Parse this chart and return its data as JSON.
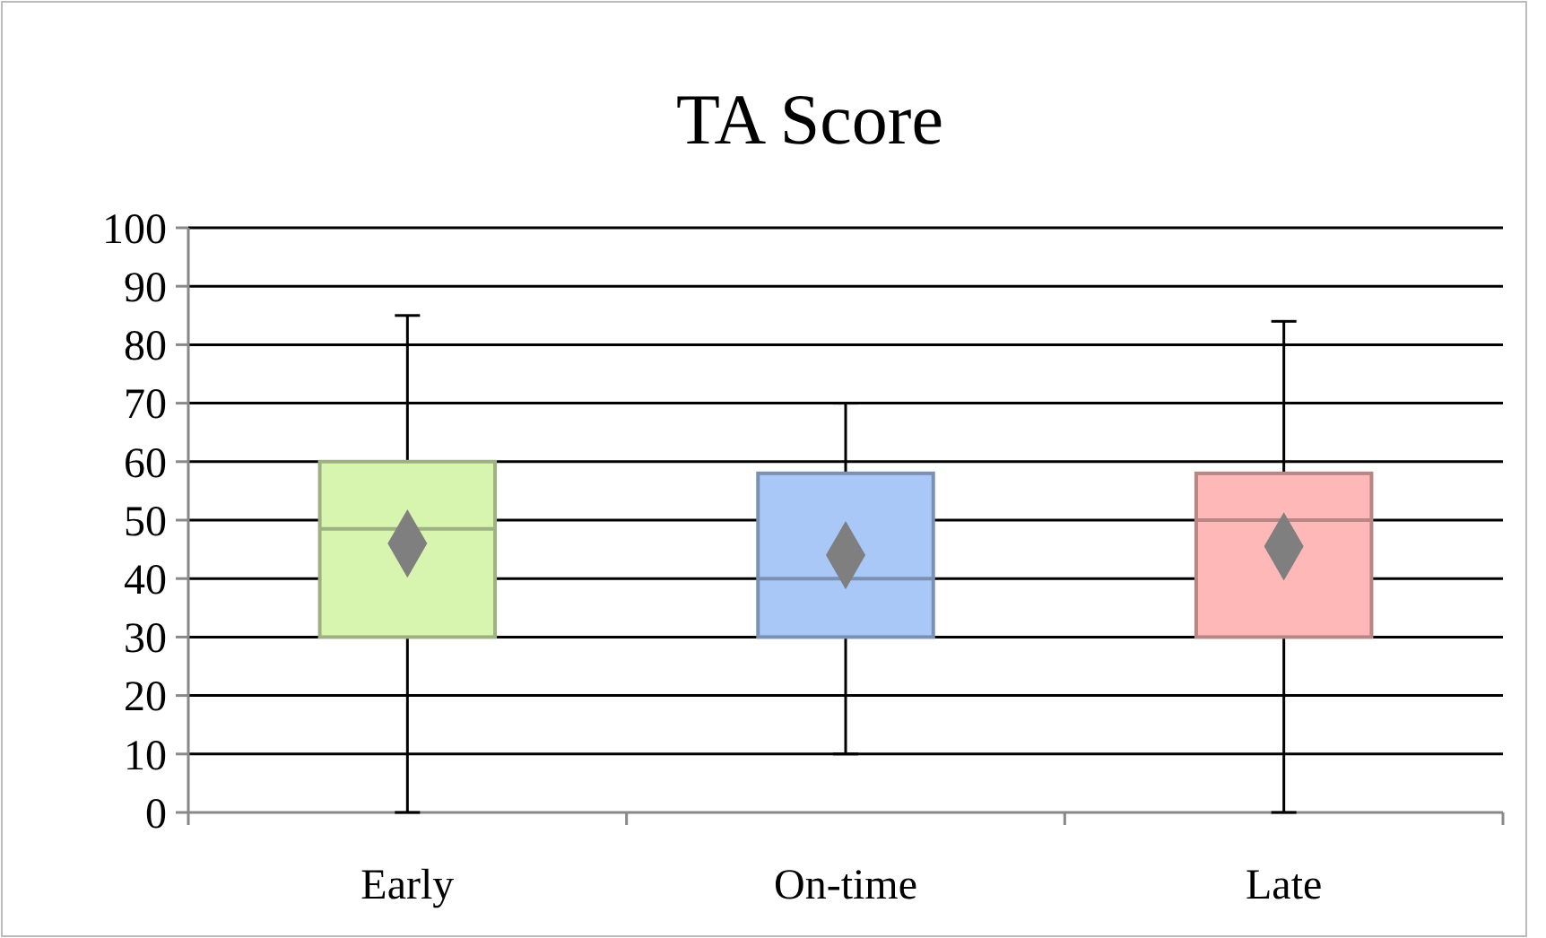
{
  "chart_data": {
    "type": "box",
    "title": "TA Score",
    "categories": [
      "Early",
      "On-time",
      "Late"
    ],
    "boxes": [
      {
        "low": 0,
        "q1": 30,
        "median": 48.5,
        "q3": 60,
        "high": 85,
        "mean": 46
      },
      {
        "low": 10,
        "q1": 30,
        "median": 40,
        "q3": 58,
        "high": 70,
        "mean": 44
      },
      {
        "low": 0,
        "q1": 30,
        "median": 50,
        "q3": 58,
        "high": 84,
        "mean": 45.5
      }
    ],
    "colors": [
      "#d8f5b0",
      "#a9c8f7",
      "#ffb8b8"
    ],
    "ylim": [
      0,
      100
    ],
    "yticks": [
      0,
      10,
      20,
      30,
      40,
      50,
      60,
      70,
      80,
      90,
      100
    ],
    "grid": "y",
    "marker": "diamond"
  }
}
